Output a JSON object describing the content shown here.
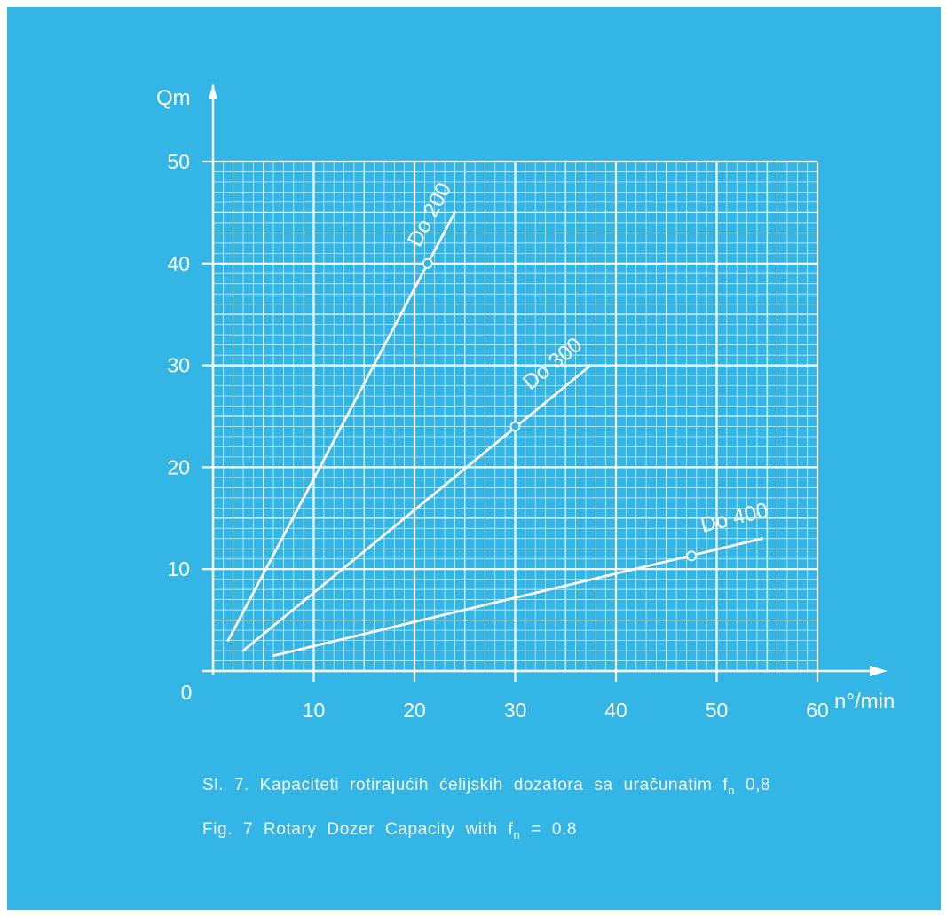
{
  "chart_data": {
    "type": "line",
    "xlabel": "n°/min",
    "ylabel": "Qm",
    "xlim": [
      0,
      60
    ],
    "ylim": [
      0,
      50
    ],
    "x_ticks": [
      "10",
      "20",
      "30",
      "40",
      "50",
      "60"
    ],
    "y_ticks": [
      "10",
      "20",
      "30",
      "40",
      "50"
    ],
    "origin_label": "0",
    "grid": true,
    "series": [
      {
        "name": "Do 200",
        "x": [
          1.5,
          24
        ],
        "y": [
          3,
          45
        ],
        "marker": {
          "x": 21.3,
          "y": 40
        }
      },
      {
        "name": "Do 300",
        "x": [
          3,
          37.5
        ],
        "y": [
          2,
          30
        ],
        "marker": {
          "x": 30,
          "y": 24
        }
      },
      {
        "name": "Do 400",
        "x": [
          6,
          54.5
        ],
        "y": [
          1.5,
          13
        ],
        "marker": {
          "x": 47.5,
          "y": 11.3
        }
      }
    ]
  },
  "caption": {
    "line1_prefix": "Sl. 7. Kapaciteti rotirajućih ćelijskih dozatora sa uračunatim f",
    "line1_sub": "n",
    "line1_suffix": " 0,8",
    "line2_prefix": "Fig. 7 Rotary Dozer Capacity with f",
    "line2_sub": "n",
    "line2_suffix": " = 0.8"
  },
  "colors": {
    "background": "#33b5e6",
    "lines": "#ffffff"
  }
}
